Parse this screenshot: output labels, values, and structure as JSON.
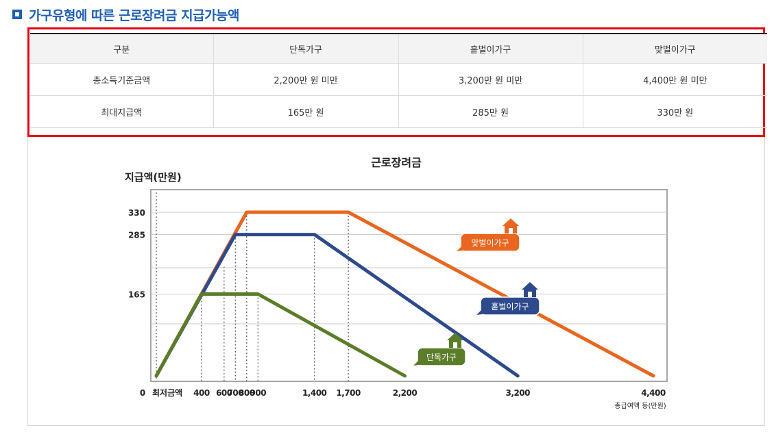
{
  "section": {
    "title": "가구유형에 따른 근로장려금 지급가능액"
  },
  "table": {
    "headers": [
      "구분",
      "단독가구",
      "홑벌이가구",
      "맞벌이가구"
    ],
    "rows": [
      [
        "총소득기준금액",
        "2,200만 원 미만",
        "3,200만 원 미만",
        "4,400만 원 미만"
      ],
      [
        "최대지급액",
        "165만 원",
        "285만 원",
        "330만 원"
      ]
    ]
  },
  "colors": {
    "title_blue": "#1f5fb0",
    "highlight_red": "#e60012",
    "single": "#5b7d2a",
    "single_earner": "#2e4a8c",
    "dual_earner": "#e8661f"
  },
  "chart_data": {
    "type": "line",
    "title": "근로장려금",
    "ylabel": "지급액(만원)",
    "xlabel": "총급여액 등(만원)",
    "ylim": [
      0,
      375
    ],
    "xlim": [
      0,
      4600
    ],
    "yticks": [
      "330",
      "285",
      "165"
    ],
    "ytick_values": [
      330,
      285,
      165
    ],
    "y_origin_label": "0",
    "xticks": [
      "400",
      "600",
      "700",
      "800",
      "900",
      "1,400",
      "1,700",
      "2,200",
      "3,200",
      "4,400"
    ],
    "xtick_values": [
      400,
      600,
      700,
      800,
      900,
      1400,
      1700,
      2200,
      3200,
      4400
    ],
    "x_min_label": "최저금액",
    "grid": true,
    "series": [
      {
        "name": "맞벌이가구",
        "color": "#e8661f",
        "x": [
          0,
          800,
          1700,
          4400
        ],
        "y": [
          0,
          330,
          330,
          0
        ]
      },
      {
        "name": "홑벌이가구",
        "color": "#2e4a8c",
        "x": [
          0,
          700,
          1400,
          3200
        ],
        "y": [
          0,
          285,
          285,
          0
        ]
      },
      {
        "name": "단독가구",
        "color": "#5b7d2a",
        "x": [
          0,
          400,
          900,
          2200
        ],
        "y": [
          0,
          165,
          165,
          0
        ]
      }
    ]
  }
}
